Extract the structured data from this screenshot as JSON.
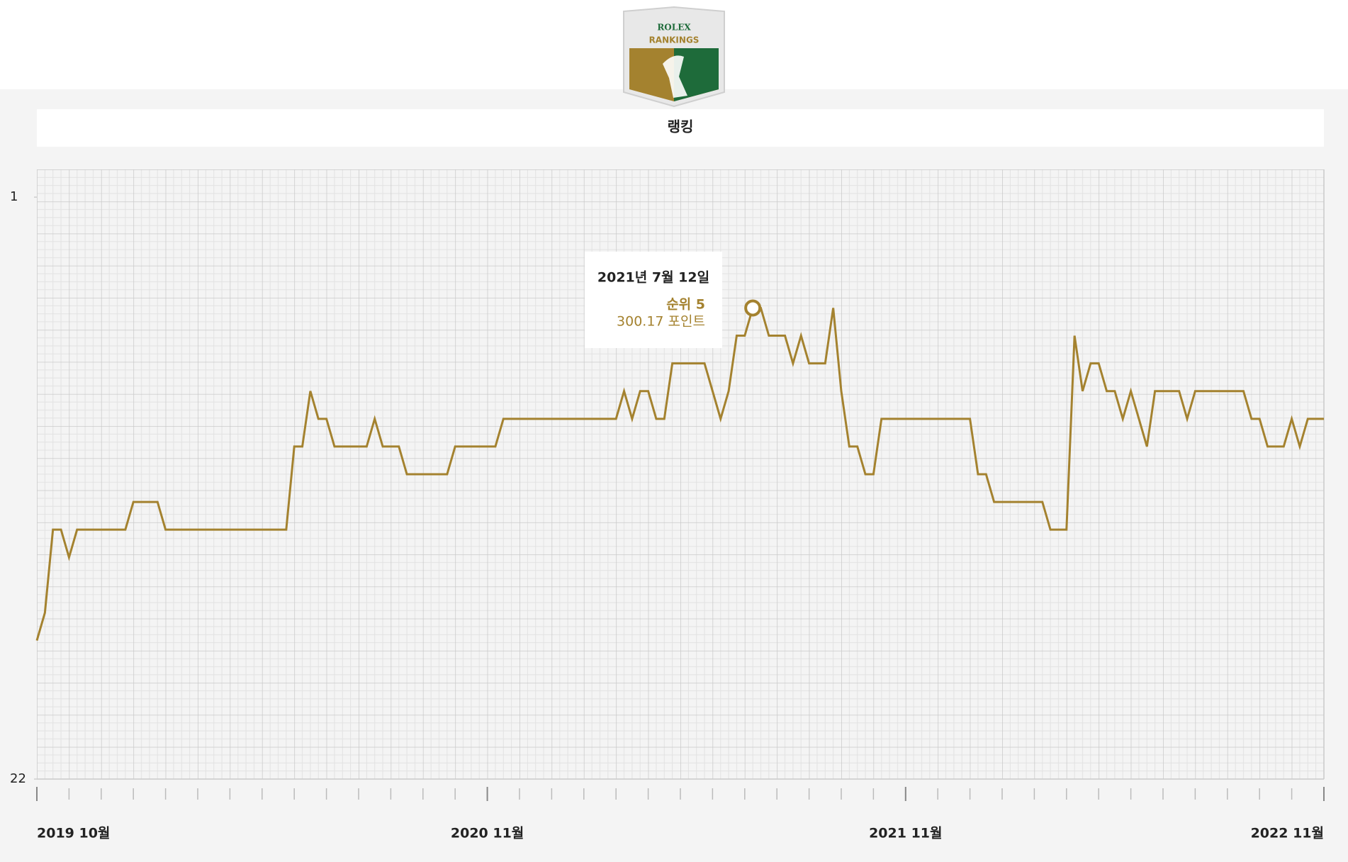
{
  "logo": {
    "brand": "ROLEX",
    "name": "RANKINGS"
  },
  "chart_data": {
    "type": "line",
    "title": "랭킹",
    "series": [
      {
        "name": "순위",
        "color": "#a4822f",
        "values": [
          17,
          16,
          13,
          13,
          14,
          13,
          13,
          13,
          13,
          13,
          13,
          13,
          12,
          12,
          12,
          12,
          13,
          13,
          13,
          13,
          13,
          13,
          13,
          13,
          13,
          13,
          13,
          13,
          13,
          13,
          13,
          13,
          10,
          10,
          8,
          9,
          9,
          10,
          10,
          10,
          10,
          10,
          9,
          10,
          10,
          10,
          11,
          11,
          11,
          11,
          11,
          11,
          10,
          10,
          10,
          10,
          10,
          10,
          9,
          9,
          9,
          9,
          9,
          9,
          9,
          9,
          9,
          9,
          9,
          9,
          9,
          9,
          9,
          8,
          9,
          8,
          8,
          9,
          9,
          7,
          7,
          7,
          7,
          7,
          8,
          9,
          8,
          6,
          6,
          5,
          5,
          6,
          6,
          6,
          7,
          6,
          7,
          7,
          7,
          5,
          8,
          10,
          10,
          11,
          11,
          9,
          9,
          9,
          9,
          9,
          9,
          9,
          9,
          9,
          9,
          9,
          9,
          11,
          11,
          12,
          12,
          12,
          12,
          12,
          12,
          12,
          13,
          13,
          13,
          6,
          8,
          7,
          7,
          8,
          8,
          9,
          8,
          9,
          10,
          8,
          8,
          8,
          8,
          9,
          8,
          8,
          8,
          8,
          8,
          8,
          8,
          9,
          9,
          10,
          10,
          10,
          9,
          10,
          9,
          9,
          9
        ]
      }
    ],
    "ylim": [
      22,
      0
    ],
    "yticks": [
      1,
      22
    ],
    "xlim": [
      0,
      160
    ],
    "xticks": [
      {
        "value": 0,
        "label": "2019 10월"
      },
      {
        "value": 56,
        "label": "2020 11월"
      },
      {
        "value": 108,
        "label": "2021 11월"
      },
      {
        "value": 160,
        "label": "2022 11월"
      }
    ],
    "tooltip": {
      "date": "2021년 7월 12일",
      "rank": "순위 5",
      "points": "300.17 포인트"
    }
  }
}
